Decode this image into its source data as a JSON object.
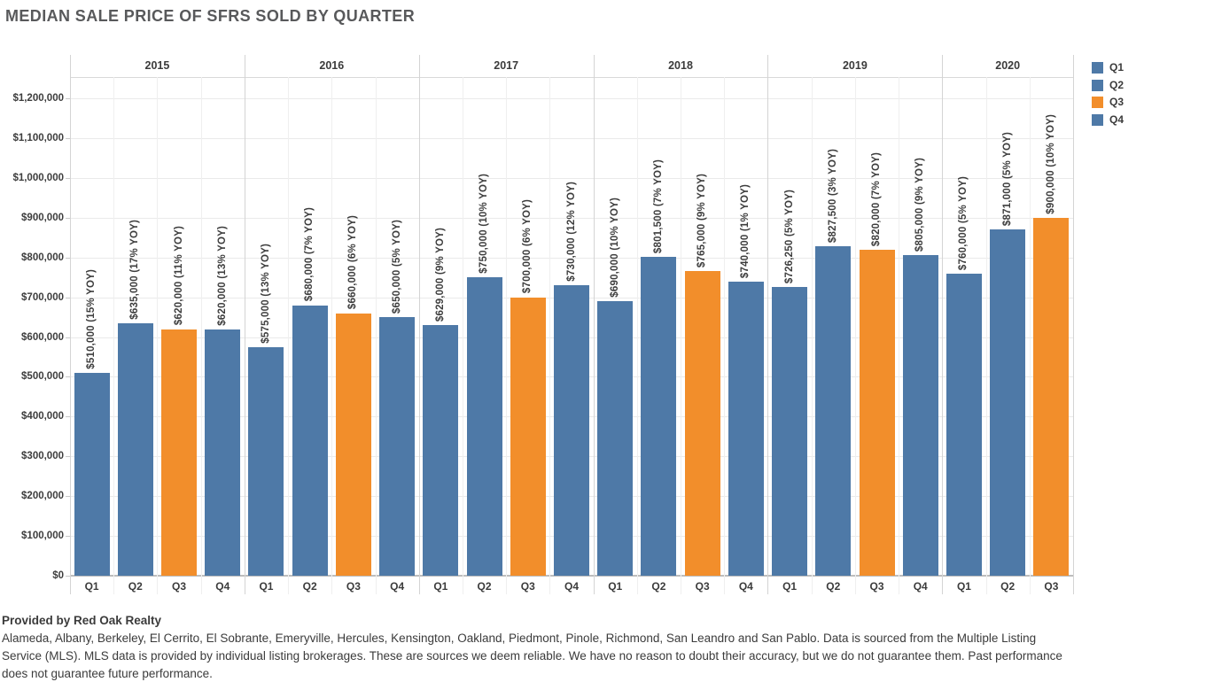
{
  "title": "MEDIAN SALE PRICE OF SFRS SOLD BY QUARTER",
  "colors": {
    "quarter_blue": "#4e79a7",
    "quarter_orange": "#f28e2b",
    "title_text": "#58595b",
    "label_text": "#3d3d3d"
  },
  "legend": [
    {
      "label": "Q1",
      "color": "#4e79a7"
    },
    {
      "label": "Q2",
      "color": "#4e79a7"
    },
    {
      "label": "Q3",
      "color": "#f28e2b"
    },
    {
      "label": "Q4",
      "color": "#4e79a7"
    }
  ],
  "chart_data": {
    "type": "bar",
    "title": "MEDIAN SALE PRICE OF SFRS SOLD BY QUARTER",
    "xlabel": "",
    "ylabel": "",
    "ylim": [
      0,
      1200000
    ],
    "grid": true,
    "legend_position": "top-right",
    "y_ticks": [
      {
        "value": 0,
        "label": "$0"
      },
      {
        "value": 100000,
        "label": "$100,000"
      },
      {
        "value": 200000,
        "label": "$200,000"
      },
      {
        "value": 300000,
        "label": "$300,000"
      },
      {
        "value": 400000,
        "label": "$400,000"
      },
      {
        "value": 500000,
        "label": "$500,000"
      },
      {
        "value": 600000,
        "label": "$600,000"
      },
      {
        "value": 700000,
        "label": "$700,000"
      },
      {
        "value": 800000,
        "label": "$800,000"
      },
      {
        "value": 900000,
        "label": "$900,000"
      },
      {
        "value": 1000000,
        "label": "$1,000,000"
      },
      {
        "value": 1100000,
        "label": "$1,100,000"
      },
      {
        "value": 1200000,
        "label": "$1,200,000"
      }
    ],
    "series_colors": {
      "Q1": "#4e79a7",
      "Q2": "#4e79a7",
      "Q3": "#f28e2b",
      "Q4": "#4e79a7"
    },
    "groups": [
      {
        "year": "2015",
        "bars": [
          {
            "quarter": "Q1",
            "value": 510000,
            "label": "$510,000 (15% YOY)"
          },
          {
            "quarter": "Q2",
            "value": 635000,
            "label": "$635,000 (17% YOY)"
          },
          {
            "quarter": "Q3",
            "value": 620000,
            "label": "$620,000 (11% YOY)"
          },
          {
            "quarter": "Q4",
            "value": 620000,
            "label": "$620,000 (13% YOY)"
          }
        ]
      },
      {
        "year": "2016",
        "bars": [
          {
            "quarter": "Q1",
            "value": 575000,
            "label": "$575,000 (13% YOY)"
          },
          {
            "quarter": "Q2",
            "value": 680000,
            "label": "$680,000 (7% YOY)"
          },
          {
            "quarter": "Q3",
            "value": 660000,
            "label": "$660,000 (6% YOY)"
          },
          {
            "quarter": "Q4",
            "value": 650000,
            "label": "$650,000 (5% YOY)"
          }
        ]
      },
      {
        "year": "2017",
        "bars": [
          {
            "quarter": "Q1",
            "value": 629000,
            "label": "$629,000 (9% YOY)"
          },
          {
            "quarter": "Q2",
            "value": 750000,
            "label": "$750,000 (10% YOY)"
          },
          {
            "quarter": "Q3",
            "value": 700000,
            "label": "$700,000 (6% YOY)"
          },
          {
            "quarter": "Q4",
            "value": 730000,
            "label": "$730,000 (12% YOY)"
          }
        ]
      },
      {
        "year": "2018",
        "bars": [
          {
            "quarter": "Q1",
            "value": 690000,
            "label": "$690,000 (10% YOY)"
          },
          {
            "quarter": "Q2",
            "value": 801500,
            "label": "$801,500 (7% YOY)"
          },
          {
            "quarter": "Q3",
            "value": 765000,
            "label": "$765,000 (9% YOY)"
          },
          {
            "quarter": "Q4",
            "value": 740000,
            "label": "$740,000 (1% YOY)"
          }
        ]
      },
      {
        "year": "2019",
        "bars": [
          {
            "quarter": "Q1",
            "value": 726250,
            "label": "$726,250 (5% YOY)"
          },
          {
            "quarter": "Q2",
            "value": 827500,
            "label": "$827,500 (3% YOY)"
          },
          {
            "quarter": "Q3",
            "value": 820000,
            "label": "$820,000 (7% YOY)"
          },
          {
            "quarter": "Q4",
            "value": 805000,
            "label": "$805,000 (9% YOY)"
          }
        ]
      },
      {
        "year": "2020",
        "bars": [
          {
            "quarter": "Q1",
            "value": 760000,
            "label": "$760,000 (5% YOY)"
          },
          {
            "quarter": "Q2",
            "value": 871000,
            "label": "$871,000 (5% YOY)"
          },
          {
            "quarter": "Q3",
            "value": 900000,
            "label": "$900,000 (10% YOY)"
          }
        ]
      }
    ]
  },
  "footer": {
    "provider": "Provided by Red Oak Realty",
    "lines": [
      "Alameda, Albany, Berkeley, El Cerrito, El Sobrante, Emeryville, Hercules, Kensington, Oakland, Piedmont, Pinole, Richmond, San Leandro and San Pablo. Data is sourced from the Multiple Listing",
      "Service (MLS). MLS data is provided by individual listing brokerages. These are sources we deem reliable. We have no reason to doubt their accuracy, but we do not guarantee them. Past performance",
      "does not guarantee future performance."
    ]
  }
}
